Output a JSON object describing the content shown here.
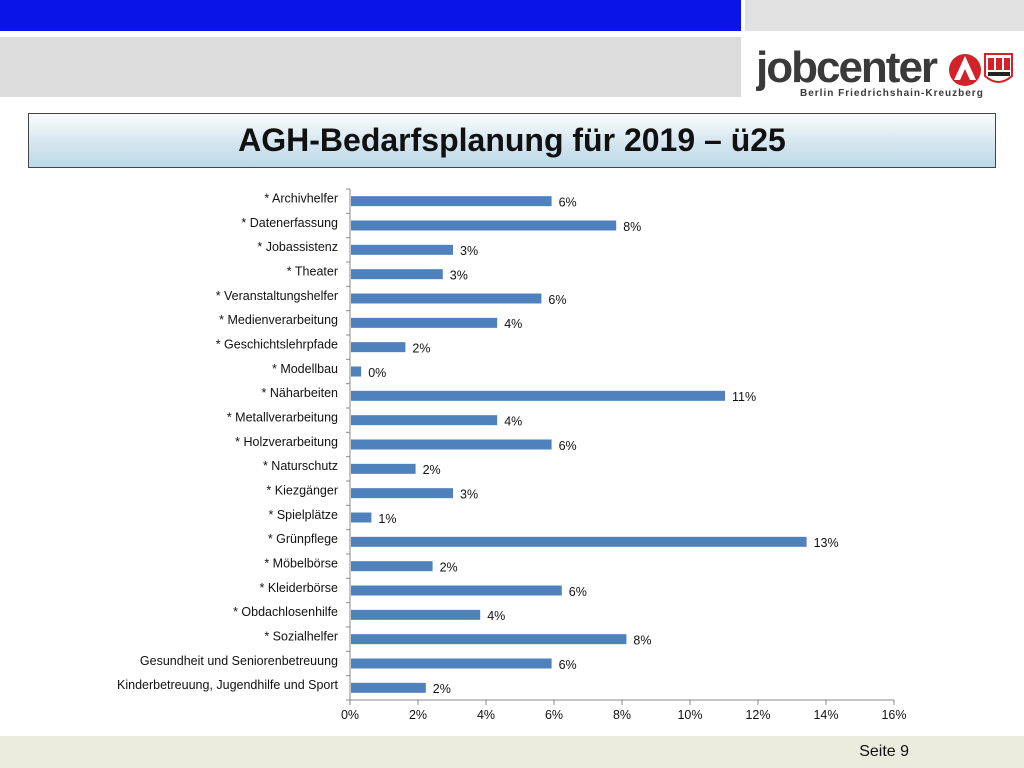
{
  "slide": {
    "title": "AGH-Bedarfsplanung für 2019 – ü25",
    "page_label": "Seite 9"
  },
  "logo": {
    "brand": "jobcenter",
    "subtitle": "Berlin Friedrichshain-Kreuzberg"
  },
  "colors": {
    "header_blue": "#0a14e6",
    "bar_blue": "#4f81bd",
    "logo_red": "#d2232a"
  },
  "chart_data": {
    "type": "bar",
    "orientation": "horizontal",
    "categories": [
      "* Archivhelfer",
      "* Datenerfassung",
      "* Jobassistenz",
      "* Theater",
      "* Veranstaltungshelfer",
      "* Medienverarbeitung",
      "* Geschichtslehrpfade",
      "* Modellbau",
      "* Näharbeiten",
      "* Metallverarbeitung",
      "* Holzverarbeitung",
      "* Naturschutz",
      "* Kiezgänger",
      "* Spielplätze",
      "* Grünpflege",
      "* Möbelbörse",
      "* Kleiderbörse",
      "* Obdachlosenhilfe",
      "* Sozialhelfer",
      "Gesundheit und Seniorenbetreuung",
      "Kinderbetreuung, Jugendhilfe und Sport"
    ],
    "values": [
      5.9,
      7.8,
      3.0,
      2.7,
      5.6,
      4.3,
      1.6,
      0.3,
      11.0,
      4.3,
      5.9,
      1.9,
      3.0,
      0.6,
      13.4,
      2.4,
      6.2,
      3.8,
      8.1,
      5.9,
      2.2
    ],
    "data_labels": [
      "6%",
      "8%",
      "3%",
      "3%",
      "6%",
      "4%",
      "2%",
      "0%",
      "11%",
      "4%",
      "6%",
      "2%",
      "3%",
      "1%",
      "13%",
      "2%",
      "6%",
      "4%",
      "8%",
      "6%",
      "2%"
    ],
    "xlim": [
      0,
      16
    ],
    "x_ticks": [
      "0%",
      "2%",
      "4%",
      "6%",
      "8%",
      "10%",
      "12%",
      "14%",
      "16%"
    ],
    "grid": false,
    "legend": "none",
    "title": "",
    "xlabel": "",
    "ylabel": ""
  }
}
